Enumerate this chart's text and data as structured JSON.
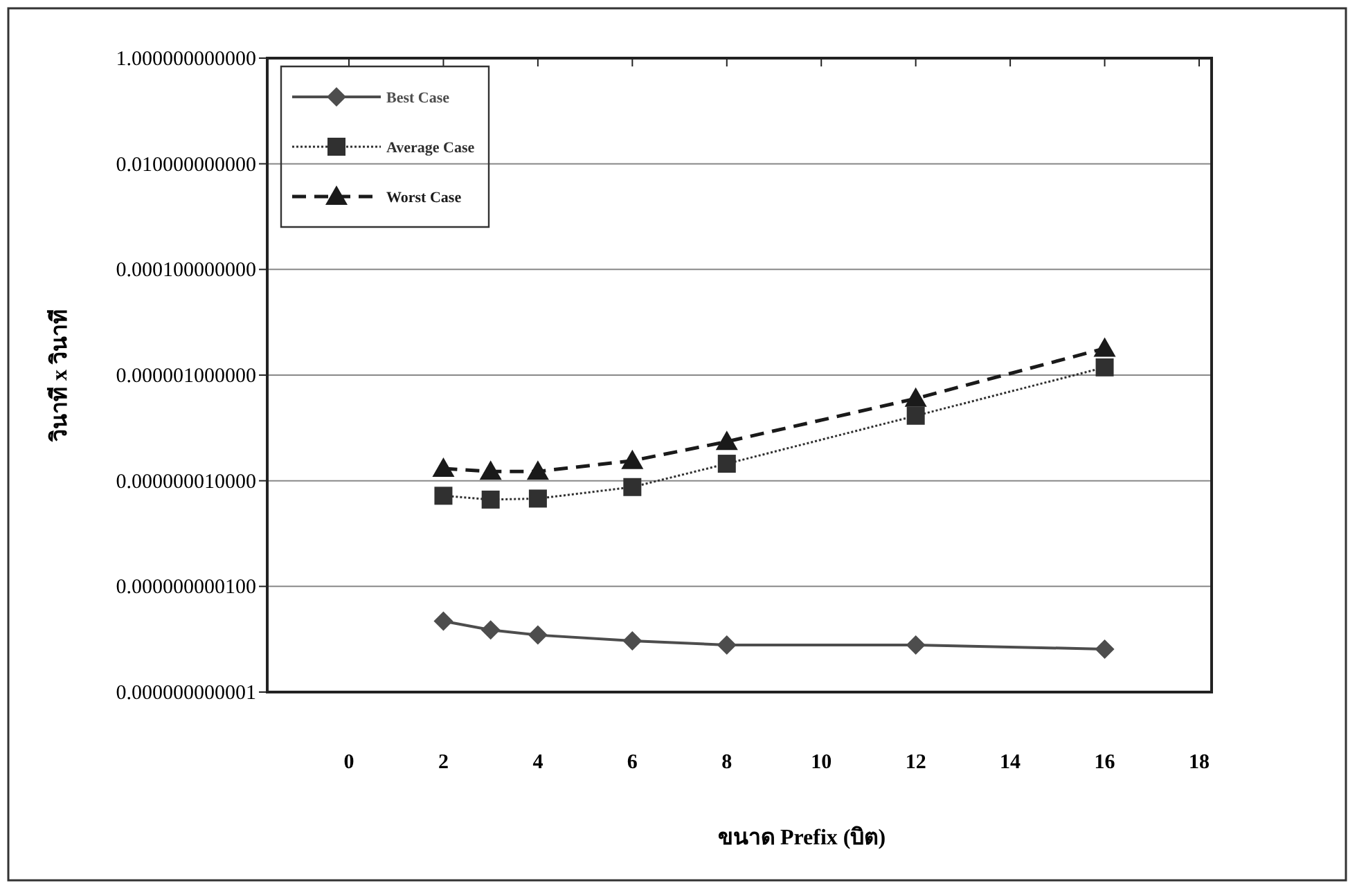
{
  "chart_data": {
    "type": "line",
    "xlabel": "ขนาด Prefix (บิต)",
    "ylabel": "วินาที x วินาที",
    "log": "y",
    "grid": "y",
    "legend": "top left",
    "x": [
      2,
      3,
      4,
      6,
      8,
      12,
      16
    ],
    "xlim": [
      0,
      18
    ],
    "xticks": [
      0,
      2,
      4,
      6,
      8,
      10,
      12,
      14,
      16,
      18
    ],
    "ylim": [
      1e-12,
      1
    ],
    "yticks": [
      {
        "value": 1,
        "label": "1.000000000000"
      },
      {
        "value": 0.01,
        "label": "0.010000000000"
      },
      {
        "value": 0.0001,
        "label": "0.000100000000"
      },
      {
        "value": 1e-06,
        "label": "0.000001000000"
      },
      {
        "value": 1e-08,
        "label": "0.000000010000"
      },
      {
        "value": 1e-10,
        "label": "0.000000000100"
      },
      {
        "value": 1e-12,
        "label": "0.000000000001"
      }
    ],
    "series": [
      {
        "name": "Best Case",
        "color": "#4d4d4d",
        "marker": "diamond",
        "line_style": "solid",
        "values": [
          2.2e-11,
          1.5e-11,
          1.2e-11,
          9.3e-12,
          7.8e-12,
          7.8e-12,
          6.5e-12
        ]
      },
      {
        "name": "Average Case",
        "color": "#303030",
        "marker": "square",
        "line_style": "dotted",
        "values": [
          5.2e-09,
          4.4e-09,
          4.6e-09,
          7.6e-09,
          2.1e-08,
          1.7e-07,
          1.4e-06
        ]
      },
      {
        "name": "Worst Case",
        "color": "#1a1a1a",
        "marker": "triangle",
        "line_style": "dashed",
        "values": [
          1.7e-08,
          1.5e-08,
          1.5e-08,
          2.4e-08,
          5.5e-08,
          3.6e-07,
          3.2e-06
        ]
      }
    ]
  }
}
